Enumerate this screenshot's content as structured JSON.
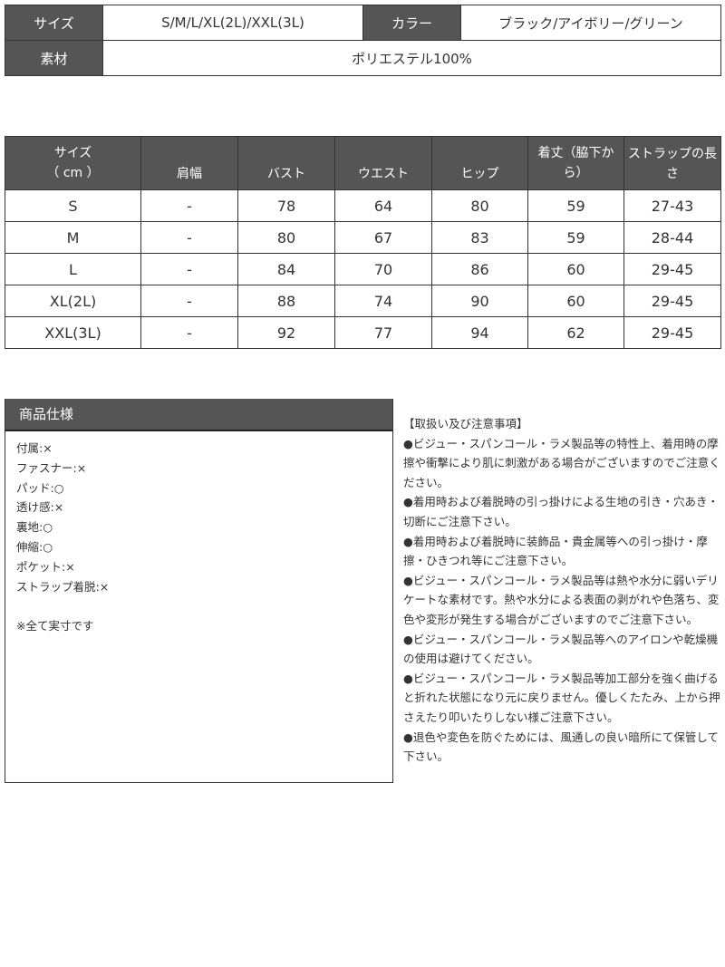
{
  "info": {
    "size_label": "サイズ",
    "size_value": "S/M/L/XL(2L)/XXL(3L)",
    "color_label": "カラー",
    "color_value": "ブラック/アイボリー/グリーン",
    "material_label": "素材",
    "material_value": "ポリエステル100%"
  },
  "size_table": {
    "headers": [
      "サイズ\n（ cm ）",
      "肩幅",
      "バスト",
      "ウエスト",
      "ヒップ",
      "着丈（脇下から）",
      "ストラップの長さ"
    ],
    "rows": [
      [
        "S",
        "-",
        "78",
        "64",
        "80",
        "59",
        "27-43"
      ],
      [
        "M",
        "-",
        "80",
        "67",
        "83",
        "59",
        "28-44"
      ],
      [
        "L",
        "-",
        "84",
        "70",
        "86",
        "60",
        "29-45"
      ],
      [
        "XL(2L)",
        "-",
        "88",
        "74",
        "90",
        "60",
        "29-45"
      ],
      [
        "XXL(3L)",
        "-",
        "92",
        "77",
        "94",
        "62",
        "29-45"
      ]
    ]
  },
  "spec": {
    "title": "商品仕様",
    "items": [
      "付属:×",
      "ファスナー:×",
      "パッド:○",
      "透け感:×",
      "裏地:○",
      "伸縮:○",
      "ポケット:×",
      "ストラップ着脱:×",
      "",
      "※全て実寸です"
    ]
  },
  "notes": {
    "title": "【取扱い及び注意事項】",
    "items": [
      "●ビジュー・スパンコール・ラメ製品等の特性上、着用時の摩擦や衝撃により肌に刺激がある場合がございますのでご注意ください。",
      "●着用時および着脱時の引っ掛けによる生地の引き・穴あき・切断にご注意下さい。",
      "●着用時および着脱時に装飾品・貴金属等への引っ掛け・摩擦・ひきつれ等にご注意下さい。",
      "●ビジュー・スパンコール・ラメ製品等は熱や水分に弱いデリケートな素材です。熱や水分による表面の剥がれや色落ち、変色や変形が発生する場合がございますのでご注意下さい。",
      "●ビジュー・スパンコール・ラメ製品等へのアイロンや乾燥機の使用は避けてください。",
      "●ビジュー・スパンコール・ラメ製品等加工部分を強く曲げると折れた状態になり元に戻りません。優しくたたみ、上から押さえたり叩いたりしない様ご注意下さい。",
      "●退色や変色を防ぐためには、風通しの良い暗所にて保管して下さい。"
    ]
  },
  "colors": {
    "header_bg": "#555555",
    "border": "#333333"
  }
}
